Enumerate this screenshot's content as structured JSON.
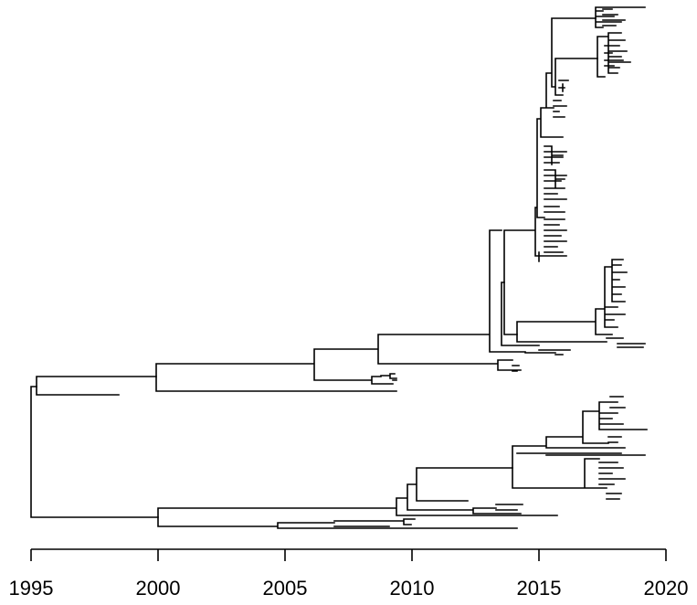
{
  "figure": {
    "type": "time-scaled phylogenetic tree",
    "colors": {
      "background": "#ffffff",
      "ink": "#000000"
    }
  },
  "axis": {
    "unit": "year",
    "range": [
      1995,
      2020
    ],
    "ticks": [
      {
        "value": 1995,
        "label": "1995"
      },
      {
        "value": 2000,
        "label": "2000"
      },
      {
        "value": 2005,
        "label": "2005"
      },
      {
        "value": 2010,
        "label": "2010"
      },
      {
        "value": 2015,
        "label": "2015"
      },
      {
        "value": 2020,
        "label": "2020"
      }
    ]
  }
}
